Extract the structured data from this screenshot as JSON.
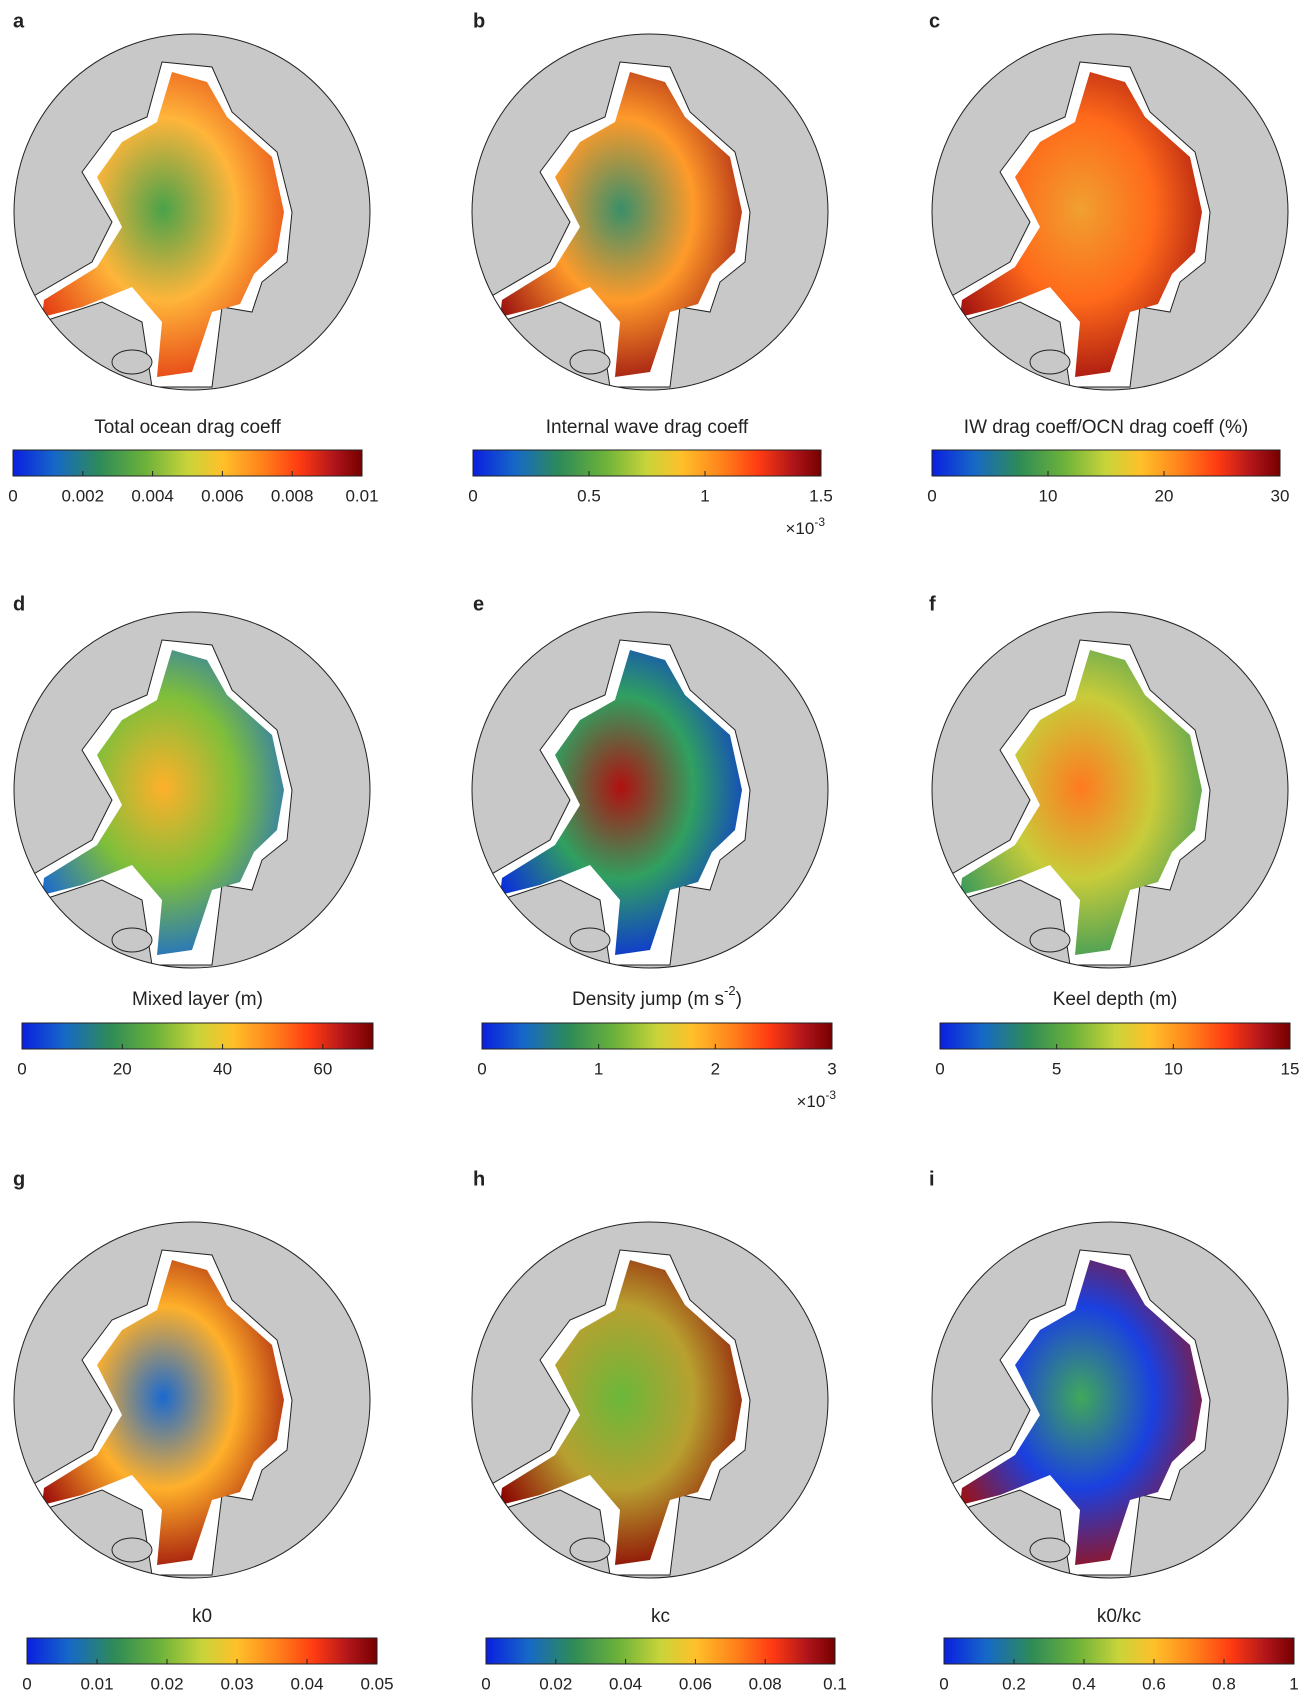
{
  "panels": [
    {
      "letter": "a",
      "label": "Total ocean drag coeff",
      "lim": [
        0,
        0.01
      ],
      "ticks": [
        0,
        0.002,
        0.004,
        0.006,
        0.008,
        0.01
      ]
    },
    {
      "letter": "b",
      "label": "Internal wave drag coeff",
      "lim": [
        0,
        1.5
      ],
      "ticks": [
        0,
        0.5,
        1,
        1.5
      ],
      "multiplier": {
        "base": "×10",
        "exponent": "-3"
      }
    },
    {
      "letter": "c",
      "label": "IW drag coeff/OCN drag coeff (%)",
      "lim": [
        0,
        30
      ],
      "ticks": [
        0,
        10,
        20,
        30
      ]
    },
    {
      "letter": "d",
      "label": "Mixed layer (m)",
      "lim": [
        0,
        70
      ],
      "ticks": [
        0,
        20,
        40,
        60
      ]
    },
    {
      "letter": "e",
      "label": "Density jump (m s",
      "label_sup": "-2",
      "label_end": ")",
      "lim": [
        0,
        3
      ],
      "ticks": [
        0,
        1,
        2,
        3
      ],
      "multiplier": {
        "base": "×10",
        "exponent": "-3"
      }
    },
    {
      "letter": "f",
      "label": "Keel depth (m)",
      "lim": [
        0,
        15
      ],
      "ticks": [
        0,
        5,
        10,
        15
      ]
    },
    {
      "letter": "g",
      "label": "k0",
      "lim": [
        0,
        0.05
      ],
      "ticks": [
        0,
        0.01,
        0.02,
        0.03,
        0.04,
        0.05
      ]
    },
    {
      "letter": "h",
      "label": "kc",
      "lim": [
        0,
        0.1
      ],
      "ticks": [
        0,
        0.02,
        0.04,
        0.06,
        0.08,
        0.1
      ]
    },
    {
      "letter": "i",
      "label": "k0/kc",
      "lim": [
        0,
        1
      ],
      "ticks": [
        0,
        0.2,
        0.4,
        0.6,
        0.8,
        1
      ]
    }
  ]
}
